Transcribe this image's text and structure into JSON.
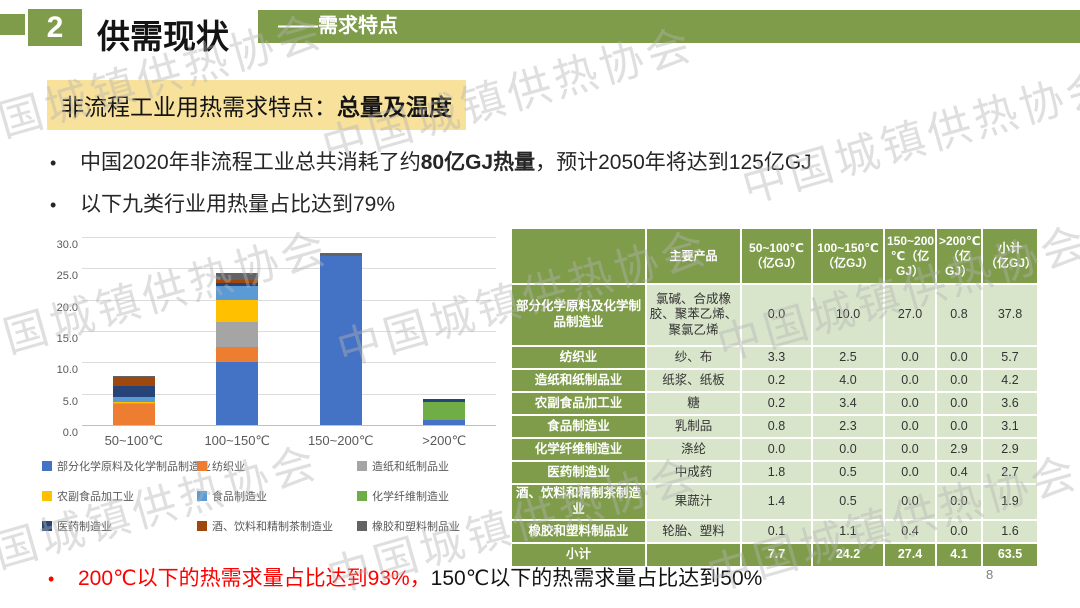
{
  "slide": {
    "badge_number": "2",
    "title": "供需现状",
    "subtitle": "——需求特点",
    "page_number": "8",
    "watermark_text": "中国城镇供热协会"
  },
  "highlight": {
    "prefix": "非流程工业用热需求特点：",
    "emphasis": "总量及温度"
  },
  "bullets": {
    "dot": "•",
    "b1_pre": "中国2020年非流程工业总共消耗了约",
    "b1_bold": "80亿GJ热量",
    "b1_post": "，预计2050年将达到125亿GJ",
    "b2": "以下九类行业用热量占比达到79%",
    "bottom_red": "200℃以下的热需求量占比达到93%，",
    "bottom_black": "150℃以下的热需求量占比达到50%"
  },
  "colors": {
    "green": "#7E9C49",
    "table_cell": "#D9E5CB",
    "highlight_bg": "#F8E19B",
    "red": "#FF0000"
  },
  "chart_data": {
    "type": "bar",
    "subtype": "stacked",
    "categories": [
      "50~100℃",
      "100~150℃",
      "150~200℃",
      ">200℃"
    ],
    "series": [
      {
        "name": "部分化学原料及化学制品制造业",
        "color": "#4472C4",
        "values": [
          0.0,
          10.0,
          27.0,
          0.8
        ]
      },
      {
        "name": "纺织业",
        "color": "#ED7D31",
        "values": [
          3.3,
          2.5,
          0.0,
          0.0
        ]
      },
      {
        "name": "造纸和纸制品业",
        "color": "#A5A5A5",
        "values": [
          0.2,
          4.0,
          0.0,
          0.0
        ]
      },
      {
        "name": "农副食品加工业",
        "color": "#FFC000",
        "values": [
          0.2,
          3.4,
          0.0,
          0.0
        ]
      },
      {
        "name": "食品制造业",
        "color": "#5B9BD5",
        "values": [
          0.8,
          2.3,
          0.0,
          0.0
        ]
      },
      {
        "name": "化学纤维制造业",
        "color": "#70AD47",
        "values": [
          0.0,
          0.0,
          0.0,
          2.9
        ]
      },
      {
        "name": "医药制造业",
        "color": "#264478",
        "values": [
          1.8,
          0.5,
          0.0,
          0.4
        ]
      },
      {
        "name": "酒、饮料和精制茶制造业",
        "color": "#9E480E",
        "values": [
          1.4,
          0.5,
          0.0,
          0.0
        ]
      },
      {
        "name": "橡胶和塑料制品业",
        "color": "#636363",
        "values": [
          0.1,
          1.1,
          0.4,
          0.0
        ]
      }
    ],
    "title": "",
    "xlabel": "",
    "ylabel": "",
    "ylim": [
      0,
      30
    ],
    "yticks": [
      0,
      5,
      10,
      15,
      20,
      25,
      30
    ],
    "ytick_labels": [
      "0.0",
      "5.0",
      "10.0",
      "15.0",
      "20.0",
      "25.0",
      "30.0"
    ],
    "grid": true,
    "legend_position": "bottom"
  },
  "table": {
    "headers": [
      "",
      "主要产品",
      "50~100℃\n（亿GJ）",
      "100~150℃\n（亿GJ）",
      "150~200\n℃（亿GJ）",
      ">200℃\n（亿GJ）",
      "小计\n（亿GJ）"
    ],
    "rows": [
      {
        "industry": "部分化学原料及化学制品制造业",
        "product": "氯碱、合成橡胶、聚苯乙烯、聚氯乙烯",
        "values": [
          "0.0",
          "10.0",
          "27.0",
          "0.8",
          "37.8"
        ]
      },
      {
        "industry": "纺织业",
        "product": "纱、布",
        "values": [
          "3.3",
          "2.5",
          "0.0",
          "0.0",
          "5.7"
        ]
      },
      {
        "industry": "造纸和纸制品业",
        "product": "纸浆、纸板",
        "values": [
          "0.2",
          "4.0",
          "0.0",
          "0.0",
          "4.2"
        ]
      },
      {
        "industry": "农副食品加工业",
        "product": "糖",
        "values": [
          "0.2",
          "3.4",
          "0.0",
          "0.0",
          "3.6"
        ]
      },
      {
        "industry": "食品制造业",
        "product": "乳制品",
        "values": [
          "0.8",
          "2.3",
          "0.0",
          "0.0",
          "3.1"
        ]
      },
      {
        "industry": "化学纤维制造业",
        "product": "涤纶",
        "values": [
          "0.0",
          "0.0",
          "0.0",
          "2.9",
          "2.9"
        ]
      },
      {
        "industry": "医药制造业",
        "product": "中成药",
        "values": [
          "1.8",
          "0.5",
          "0.0",
          "0.4",
          "2.7"
        ]
      },
      {
        "industry": "酒、饮料和精制茶制造业",
        "product": "果蔬汁",
        "values": [
          "1.4",
          "0.5",
          "0.0",
          "0.0",
          "1.9"
        ]
      },
      {
        "industry": "橡胶和塑料制品业",
        "product": "轮胎、塑料",
        "values": [
          "0.1",
          "1.1",
          "0.4",
          "0.0",
          "1.6"
        ]
      }
    ],
    "total": {
      "label": "小计",
      "values": [
        "7.7",
        "24.2",
        "27.4",
        "4.1",
        "63.5"
      ]
    }
  }
}
